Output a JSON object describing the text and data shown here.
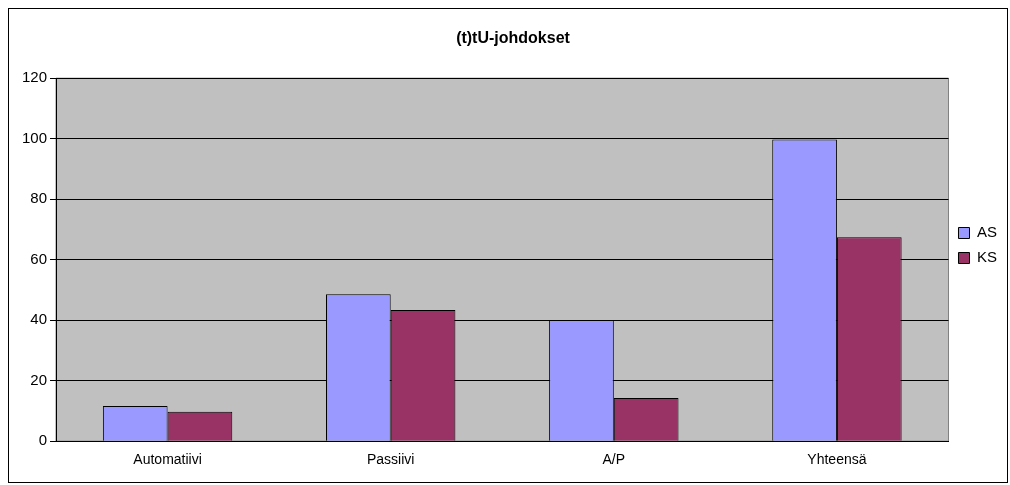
{
  "chart_data": {
    "type": "bar",
    "title": "(t)tU-johdokset",
    "categories": [
      "Automatiivi",
      "Passiivi",
      "A/P",
      "Yhteensä"
    ],
    "series": [
      {
        "name": "AS",
        "color": "#9999ff",
        "values": [
          11.6,
          48.6,
          40.1,
          99.7
        ]
      },
      {
        "name": "KS",
        "color": "#993366",
        "values": [
          9.7,
          43.4,
          14.3,
          67.4
        ]
      }
    ],
    "ylim": [
      0,
      120
    ],
    "yticks": [
      0,
      20,
      40,
      60,
      80,
      100,
      120
    ],
    "grid": "y",
    "legend": "right"
  }
}
